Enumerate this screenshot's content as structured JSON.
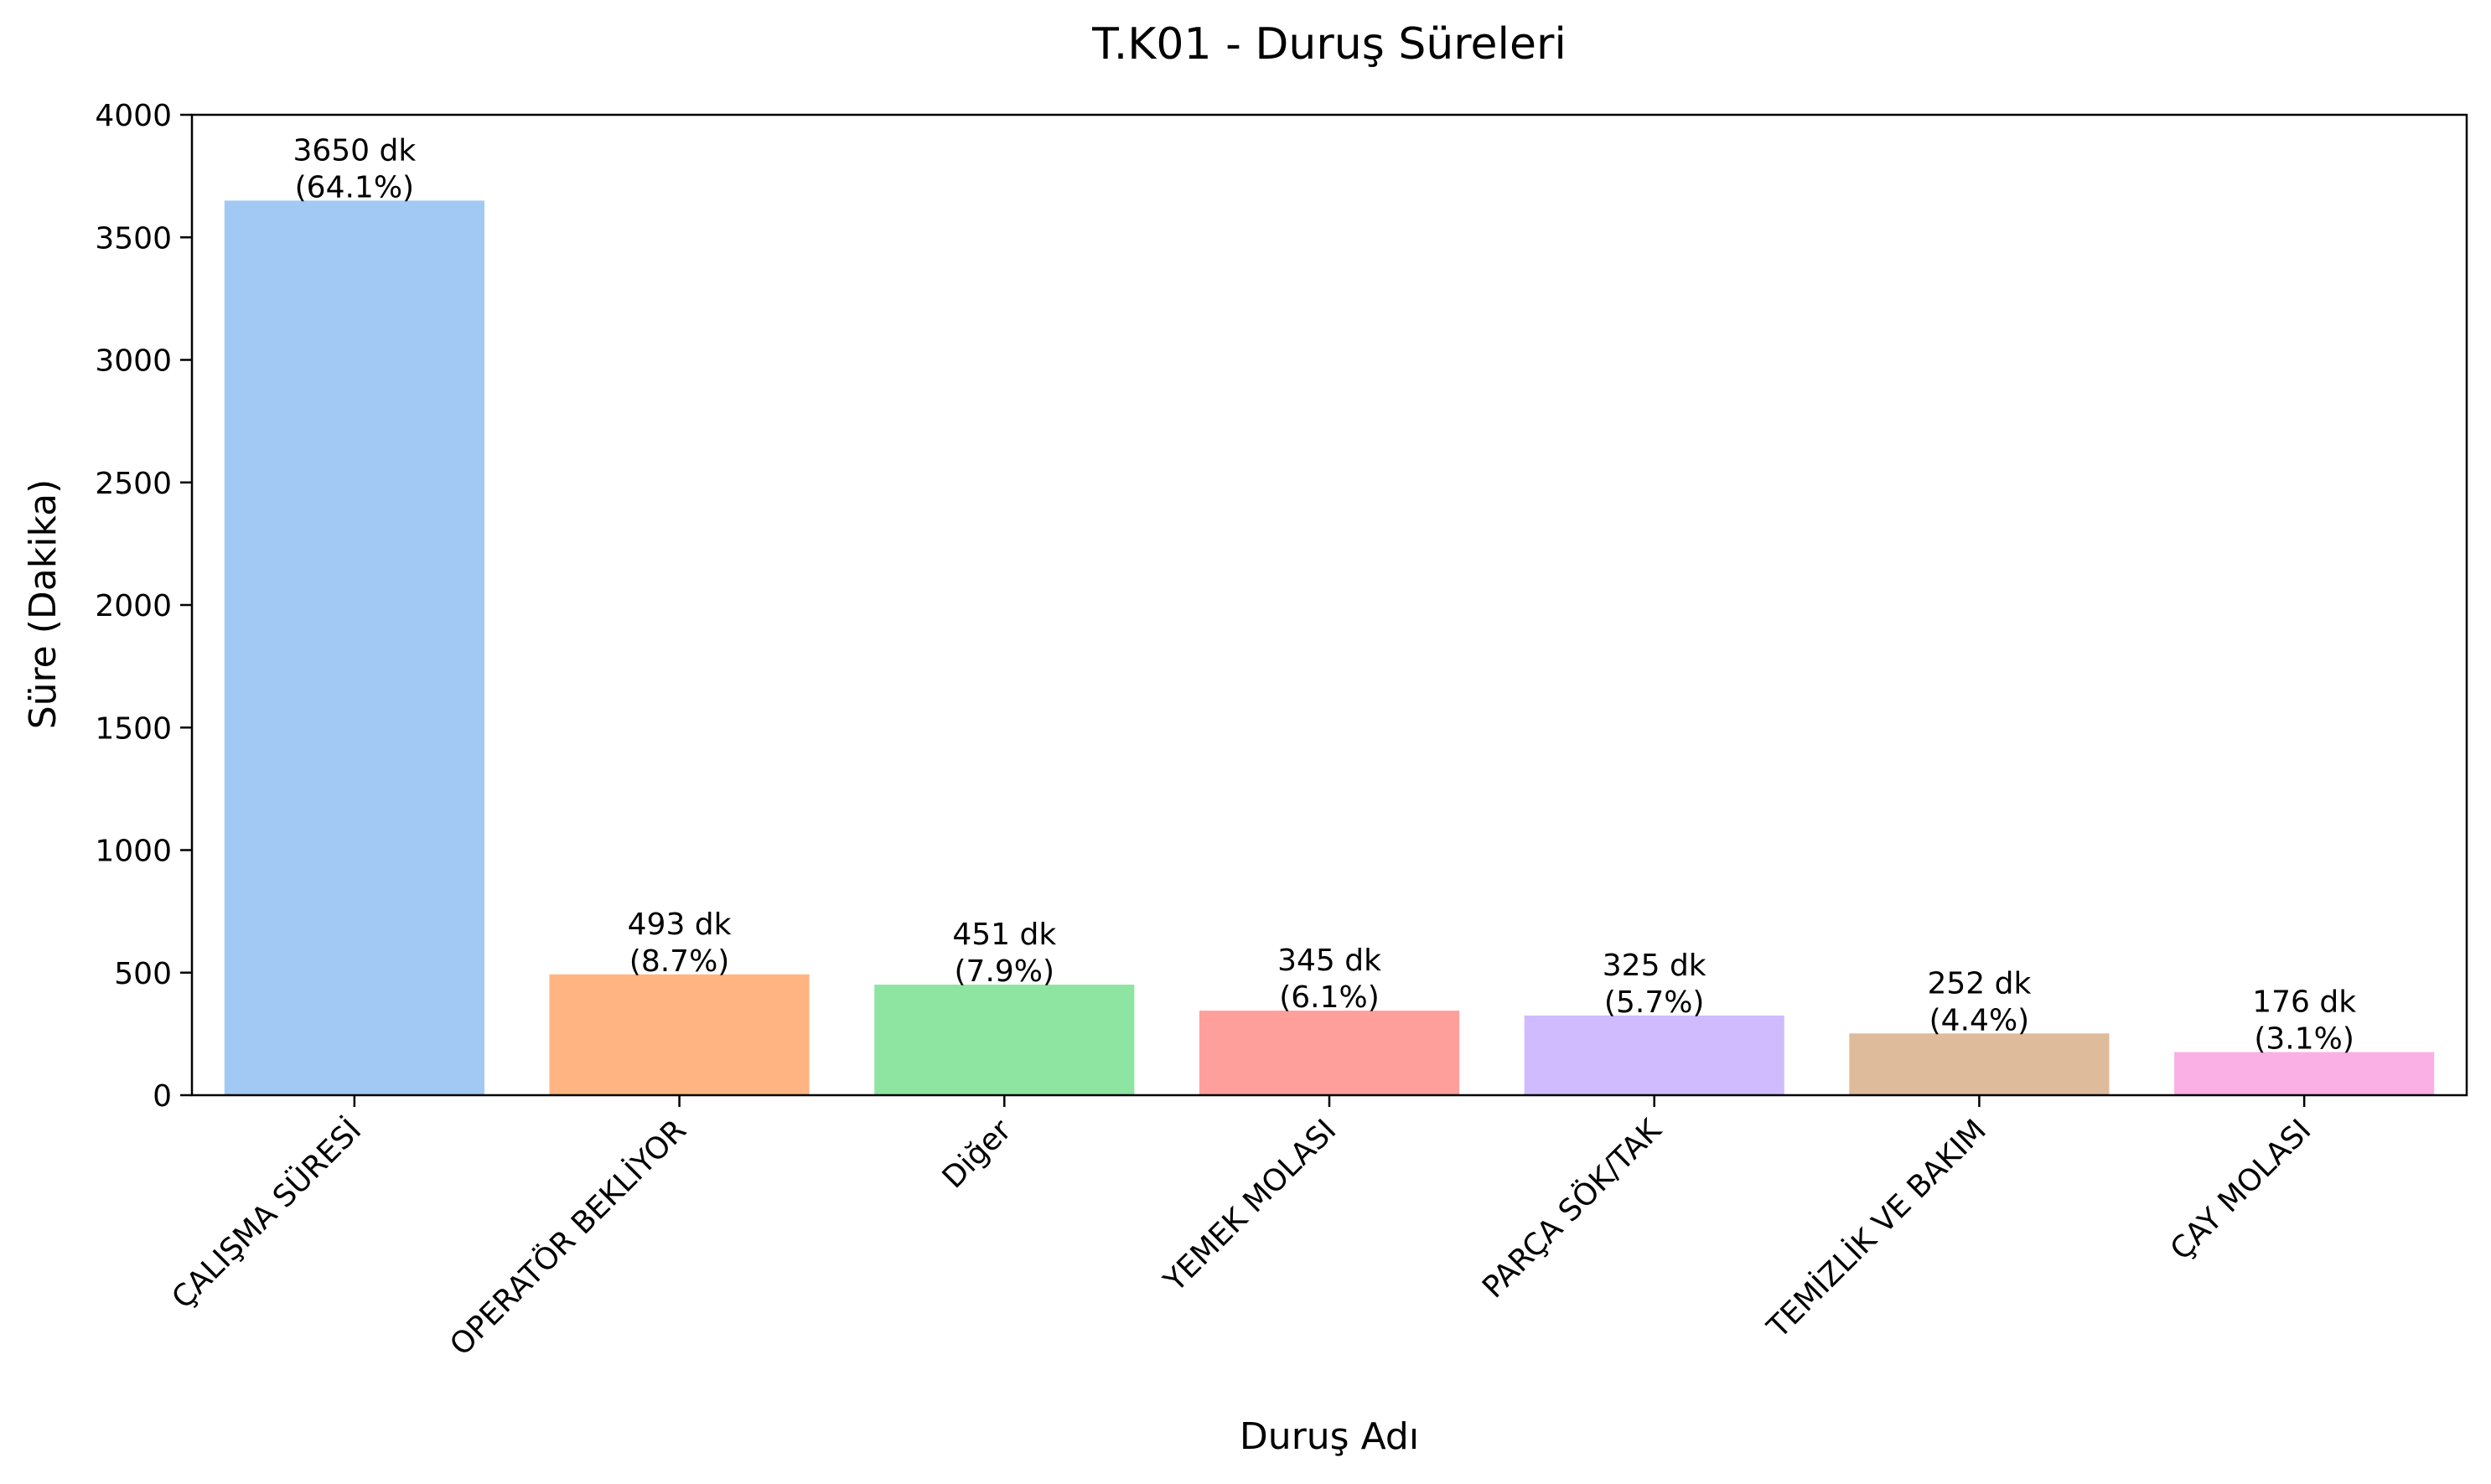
{
  "chart_data": {
    "type": "bar",
    "title": "T.K01 - Duruş Süreleri",
    "xlabel": "Duruş Adı",
    "ylabel": "Süre (Dakika)",
    "ylim": [
      0,
      4000
    ],
    "yticks": [
      0,
      500,
      1000,
      1500,
      2000,
      2500,
      3000,
      3500,
      4000
    ],
    "grid": false,
    "legend": "none",
    "categories": [
      "ÇALIŞMA SÜRESİ",
      "OPERATÖR BEKLİYOR",
      "Diğer",
      "YEMEK MOLASI",
      "PARÇA SÖK/TAK",
      "TEMİZLİK VE BAKIM",
      "ÇAY MOLASI"
    ],
    "values": [
      3650,
      493,
      451,
      345,
      325,
      252,
      176
    ],
    "value_labels": [
      "3650 dk",
      "493 dk",
      "451 dk",
      "345 dk",
      "325 dk",
      "252 dk",
      "176 dk"
    ],
    "percent_labels": [
      "(64.1%)",
      "(8.7%)",
      "(7.9%)",
      "(6.1%)",
      "(5.7%)",
      "(4.4%)",
      "(3.1%)"
    ],
    "colors": [
      "#a1c9f4",
      "#ffb482",
      "#8de5a1",
      "#ff9f9b",
      "#d0bbff",
      "#debb9b",
      "#fab0e4"
    ]
  }
}
